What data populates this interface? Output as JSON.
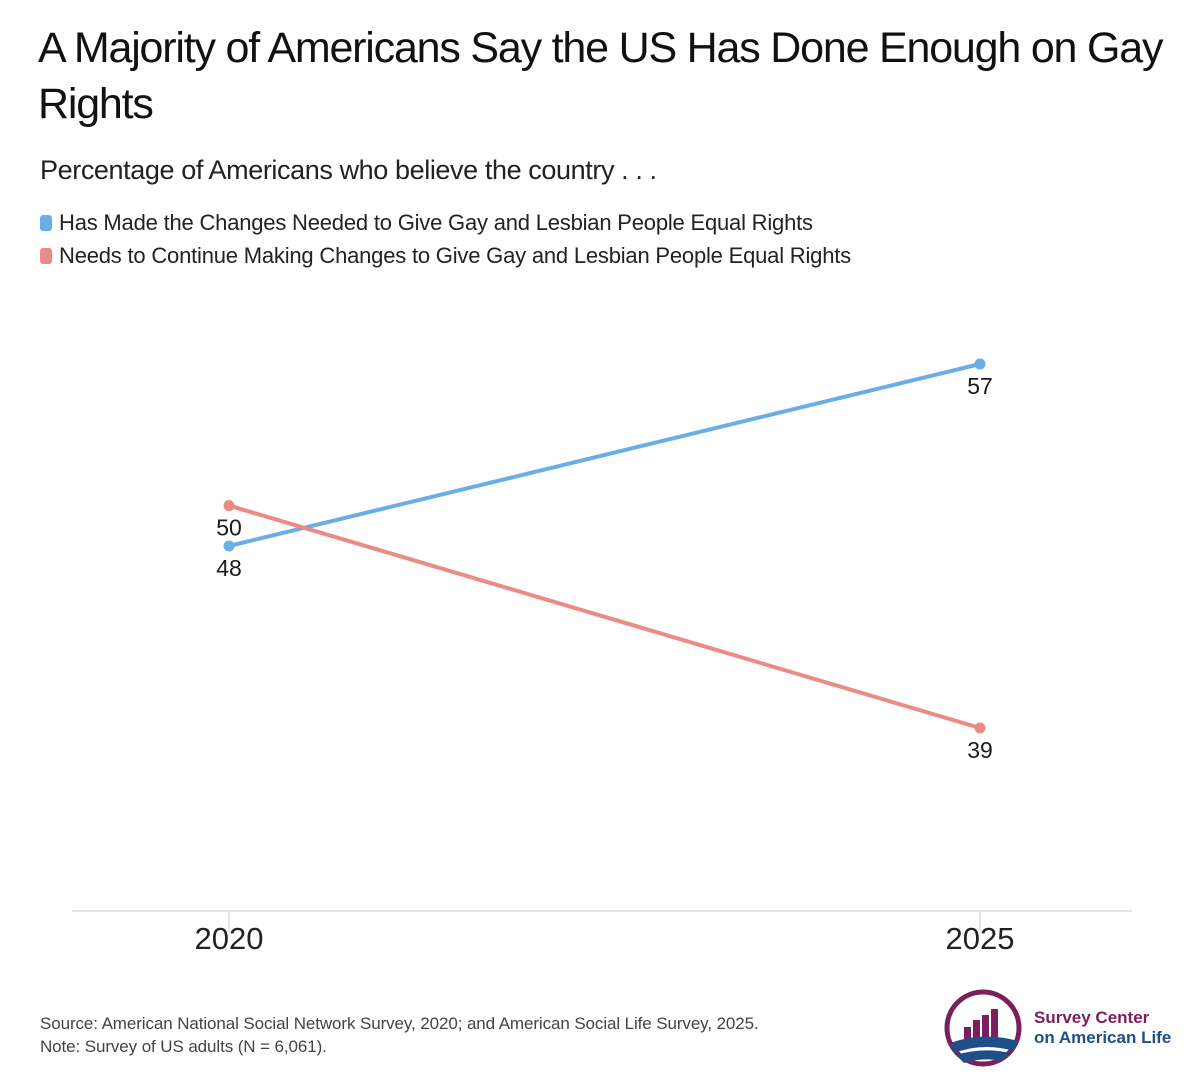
{
  "title": "A Majority of Americans Say the US Has Done Enough on Gay Rights",
  "subtitle": "Percentage of Americans who believe the country . . .",
  "colors": {
    "series_a": "#6aaee6",
    "series_b": "#ec8a85",
    "axis": "#e6e6e6"
  },
  "chart_data": {
    "type": "line",
    "x": [
      "2020",
      "2025"
    ],
    "series": [
      {
        "name": "Has Made the Changes Needed to Give Gay and Lesbian People Equal Rights",
        "values": [
          48,
          57
        ],
        "color": "#6aaee6"
      },
      {
        "name": "Needs to Continue Making Changes to Give Gay and Lesbian People Equal Rights",
        "values": [
          50,
          39
        ],
        "color": "#ec8a85"
      }
    ],
    "data_labels": [
      {
        "series": 0,
        "point": 0,
        "text": "48",
        "position": "below"
      },
      {
        "series": 0,
        "point": 1,
        "text": "57",
        "position": "below"
      },
      {
        "series": 1,
        "point": 0,
        "text": "50",
        "position": "below"
      },
      {
        "series": 1,
        "point": 1,
        "text": "39",
        "position": "below"
      }
    ],
    "xlabel": "",
    "ylabel": "",
    "ylim": [
      30,
      60
    ],
    "grid": false,
    "legend": "top-left"
  },
  "footer": {
    "source": "Source: American National Social Network Survey, 2020; and American Social Life Survey, 2025.",
    "note": "Note: Survey of US adults (N = 6,061)."
  },
  "logo": {
    "line1": "Survey Center",
    "line2": "on American Life"
  }
}
